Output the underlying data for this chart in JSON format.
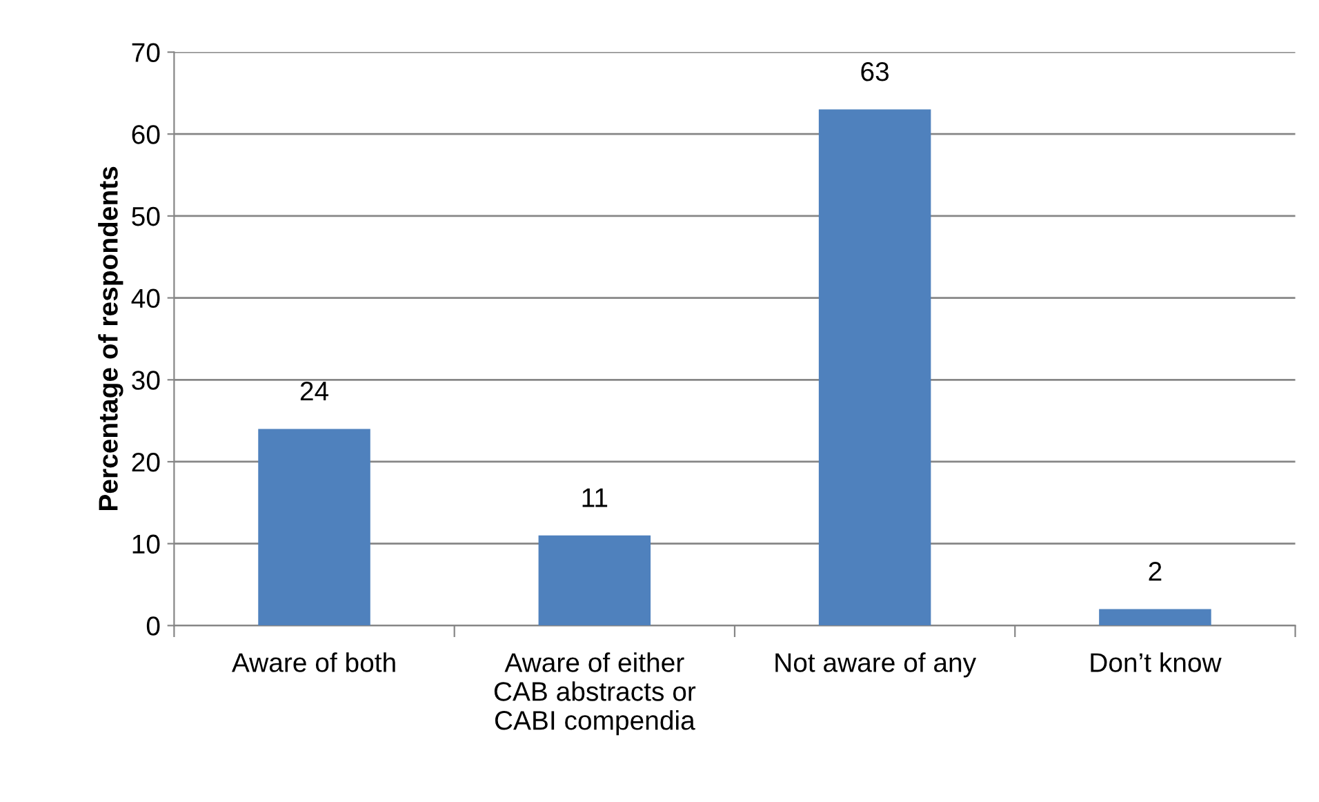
{
  "chart_data": {
    "type": "bar",
    "ylabel": "Percentage of respondents",
    "categories": [
      "Aware of both",
      "Aware of either\nCAB abstracts or\nCABI compendia",
      "Not aware of any",
      "Don’t know"
    ],
    "values": [
      24,
      11,
      63,
      2
    ],
    "color": "#4f81bd",
    "ylim": [
      0,
      70
    ],
    "yticks": [
      0,
      10,
      20,
      30,
      40,
      50,
      60,
      70
    ],
    "grid": "y",
    "data_labels": true
  }
}
